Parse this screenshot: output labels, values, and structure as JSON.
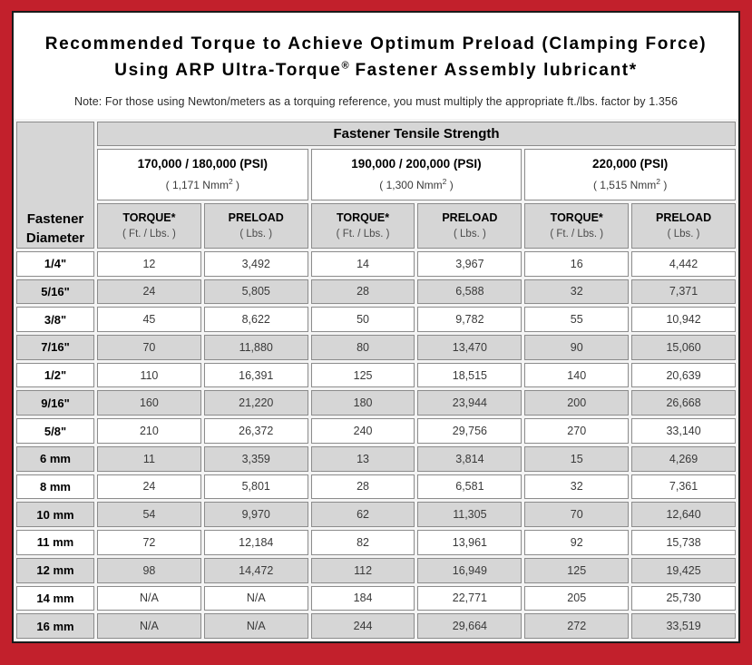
{
  "colors": {
    "frame_red": "#C2202C",
    "panel_border": "#1a1a1a",
    "cell_gray": "#d6d6d6",
    "cell_border": "#8c8c8c"
  },
  "title": {
    "line1": "Recommended Torque to Achieve Optimum Preload (Clamping Force)",
    "line2_pre": "Using ARP Ultra-Torque",
    "reg_mark": "®",
    "line2_post": " Fastener Assembly lubricant*",
    "note": "Note: For those using Newton/meters as a torquing reference, you must multiply the appropriate ft./lbs. factor by 1.356"
  },
  "table": {
    "corner_header": "Fastener Diameter",
    "tensile_header": "Fastener Tensile Strength",
    "groups": [
      {
        "psi": "170,000 / 180,000 (PSI)",
        "nmm_pre": "( 1,171 Nmm",
        "nmm_sup": "2",
        "nmm_post": " )"
      },
      {
        "psi": "190,000 / 200,000 (PSI)",
        "nmm_pre": "( 1,300 Nmm",
        "nmm_sup": "2",
        "nmm_post": " )"
      },
      {
        "psi": "220,000 (PSI)",
        "nmm_pre": "( 1,515 Nmm",
        "nmm_sup": "2",
        "nmm_post": " )"
      }
    ],
    "columns": [
      {
        "label": "TORQUE*",
        "unit": "( Ft. / Lbs. )"
      },
      {
        "label": "PRELOAD",
        "unit": "( Lbs. )"
      },
      {
        "label": "TORQUE*",
        "unit": "( Ft. / Lbs. )"
      },
      {
        "label": "PRELOAD",
        "unit": "( Lbs. )"
      },
      {
        "label": "TORQUE*",
        "unit": "( Ft. / Lbs. )"
      },
      {
        "label": "PRELOAD",
        "unit": "( Lbs. )"
      }
    ],
    "rows": [
      {
        "diameter": "1/4\"",
        "values": [
          "12",
          "3,492",
          "14",
          "3,967",
          "16",
          "4,442"
        ]
      },
      {
        "diameter": "5/16\"",
        "values": [
          "24",
          "5,805",
          "28",
          "6,588",
          "32",
          "7,371"
        ]
      },
      {
        "diameter": "3/8\"",
        "values": [
          "45",
          "8,622",
          "50",
          "9,782",
          "55",
          "10,942"
        ]
      },
      {
        "diameter": "7/16\"",
        "values": [
          "70",
          "11,880",
          "80",
          "13,470",
          "90",
          "15,060"
        ]
      },
      {
        "diameter": "1/2\"",
        "values": [
          "110",
          "16,391",
          "125",
          "18,515",
          "140",
          "20,639"
        ]
      },
      {
        "diameter": "9/16\"",
        "values": [
          "160",
          "21,220",
          "180",
          "23,944",
          "200",
          "26,668"
        ]
      },
      {
        "diameter": "5/8\"",
        "values": [
          "210",
          "26,372",
          "240",
          "29,756",
          "270",
          "33,140"
        ]
      },
      {
        "diameter": "6 mm",
        "values": [
          "11",
          "3,359",
          "13",
          "3,814",
          "15",
          "4,269"
        ]
      },
      {
        "diameter": "8 mm",
        "values": [
          "24",
          "5,801",
          "28",
          "6,581",
          "32",
          "7,361"
        ]
      },
      {
        "diameter": "10 mm",
        "values": [
          "54",
          "9,970",
          "62",
          "11,305",
          "70",
          "12,640"
        ]
      },
      {
        "diameter": "11 mm",
        "values": [
          "72",
          "12,184",
          "82",
          "13,961",
          "92",
          "15,738"
        ]
      },
      {
        "diameter": "12 mm",
        "values": [
          "98",
          "14,472",
          "112",
          "16,949",
          "125",
          "19,425"
        ]
      },
      {
        "diameter": "14 mm",
        "values": [
          "N/A",
          "N/A",
          "184",
          "22,771",
          "205",
          "25,730"
        ]
      },
      {
        "diameter": "16 mm",
        "values": [
          "N/A",
          "N/A",
          "244",
          "29,664",
          "272",
          "33,519"
        ]
      }
    ]
  }
}
